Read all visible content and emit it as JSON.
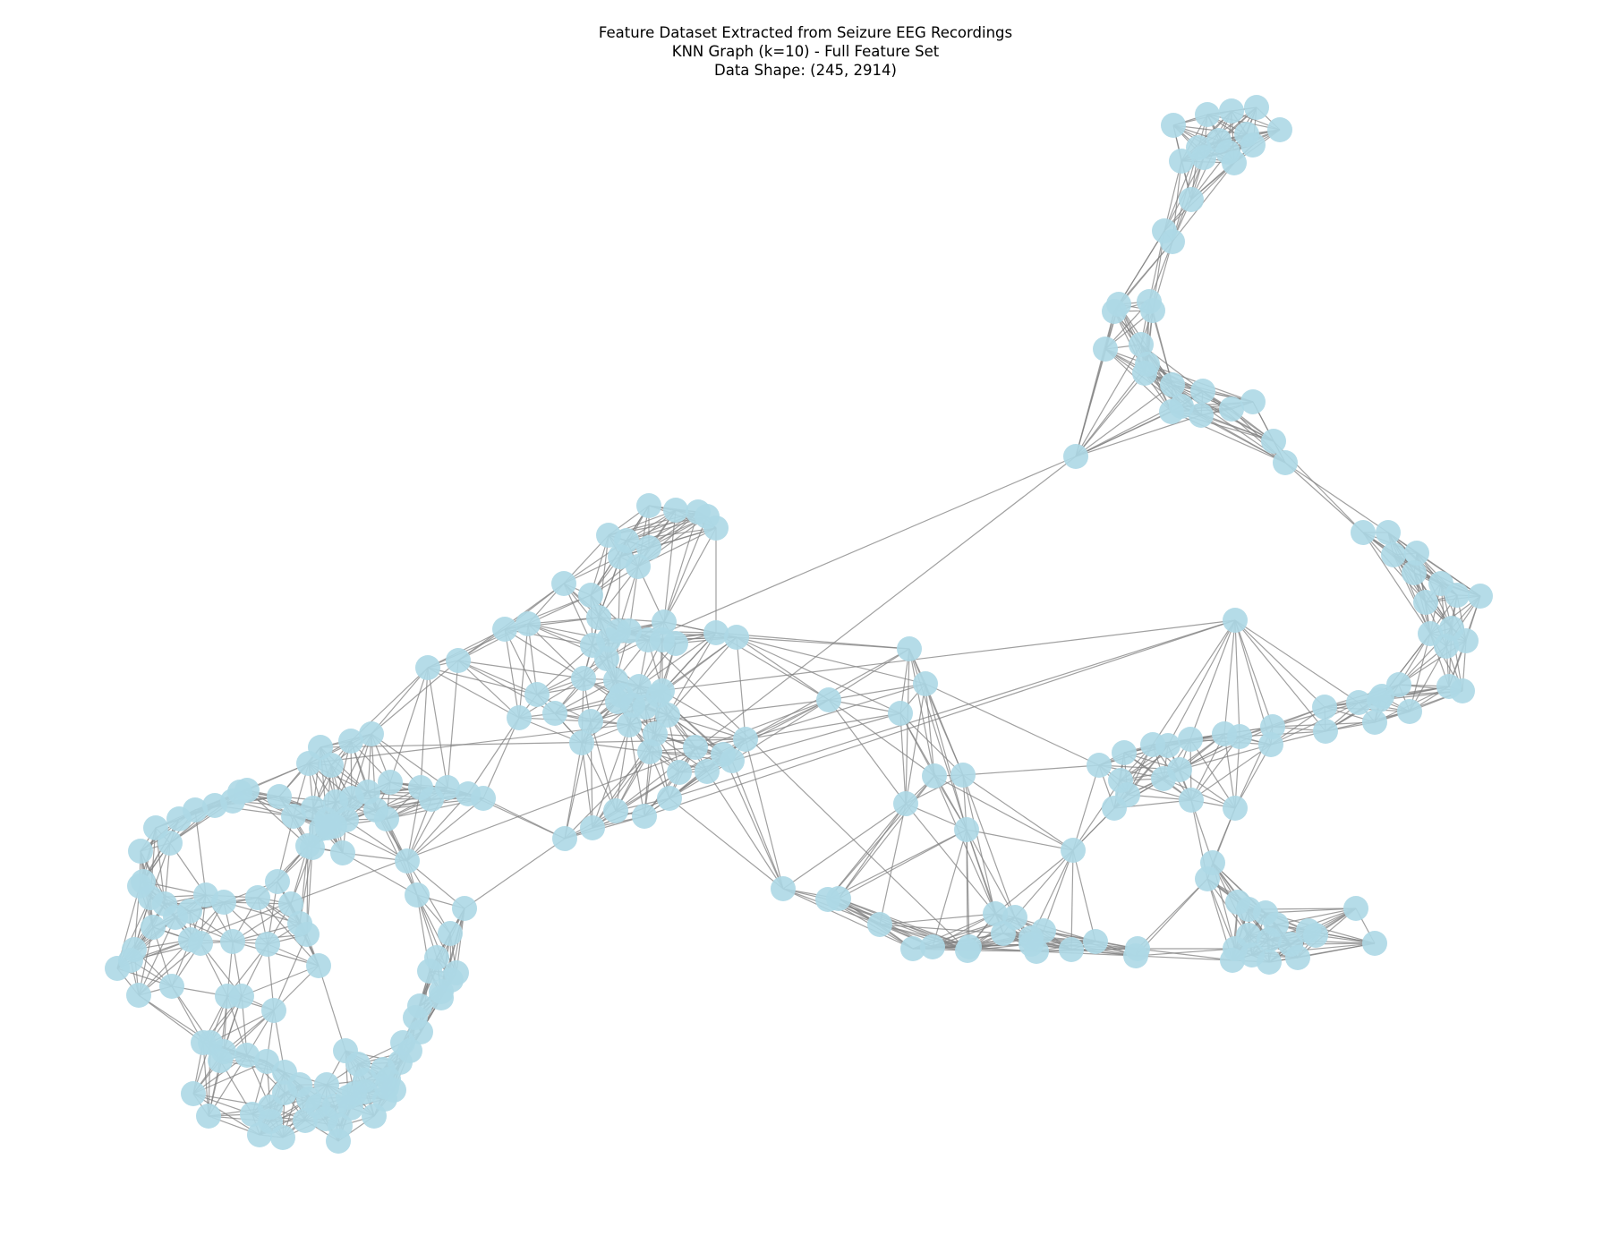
{
  "figure": {
    "title_line1": "Feature Dataset Extracted from Seizure EEG Recordings",
    "title_line2": "KNN Graph (k=10) - Full Feature Set",
    "title_line3": "Data Shape: (245, 2914)"
  },
  "colors": {
    "node": "#add8e6",
    "edge": "#808080",
    "background": "#ffffff"
  },
  "graph": {
    "k": 10,
    "node_count": 245
  }
}
